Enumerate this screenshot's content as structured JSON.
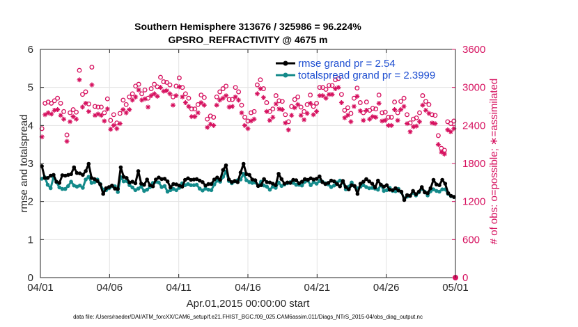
{
  "chart_data": {
    "type": "line",
    "title": "Southern Hemisphere 313676 / 325986 = 96.224%",
    "subtitle": "GPSRO_REFRACTIVITY @ 4675 m",
    "xlabel": "Apr.01,2015 00:00:00 start",
    "ylabel_left": "rmse and totalspread",
    "ylabel_right": "# of obs: o=possible; ∗=assimilated",
    "footnote": "data file: /Users/raeder/DAI/ATM_forcXX/CAM6_setup/f.e21.FHIST_BGC.f09_025.CAM6assim.011/Diags_NTrS_2015-04/obs_diag_output.nc",
    "x_ticks": [
      "04/01",
      "04/06",
      "04/11",
      "04/16",
      "04/21",
      "04/26",
      "05/01"
    ],
    "x_tick_days": [
      0,
      5,
      10,
      15,
      20,
      25,
      30
    ],
    "xlim_days": [
      0,
      30
    ],
    "ylim_left": [
      0,
      6
    ],
    "y_ticks_left": [
      0,
      1,
      2,
      3,
      4,
      5,
      6
    ],
    "ylim_right": [
      0,
      3600
    ],
    "y_ticks_right": [
      0,
      600,
      1200,
      1800,
      2400,
      3000,
      3600
    ],
    "grid": true,
    "legend_position": "top-right",
    "colors": {
      "rmse": "#000000",
      "totalspread": "#138a8a",
      "obs": "#d6115f",
      "legend_text": "#1f4fd1"
    },
    "series": [
      {
        "name": "rmse grand pr = 2.54",
        "axis": "left",
        "marker": "circle",
        "values": [
          2.93,
          2.62,
          2.62,
          2.68,
          2.7,
          2.52,
          2.49,
          2.69,
          2.68,
          2.7,
          2.72,
          2.9,
          2.75,
          2.74,
          2.7,
          2.8,
          2.99,
          2.62,
          2.59,
          2.54,
          2.45,
          2.2,
          2.35,
          2.38,
          2.42,
          2.34,
          2.33,
          2.9,
          2.65,
          2.62,
          2.5,
          2.52,
          2.48,
          2.8,
          2.47,
          2.44,
          2.58,
          2.43,
          2.4,
          2.58,
          2.63,
          2.59,
          2.6,
          2.53,
          2.37,
          2.46,
          2.45,
          2.42,
          2.39,
          2.57,
          2.61,
          2.57,
          2.58,
          2.59,
          2.55,
          2.51,
          2.42,
          2.46,
          2.46,
          2.58,
          2.63,
          2.57,
          2.83,
          2.95,
          2.58,
          2.51,
          2.54,
          2.51,
          2.76,
          2.99,
          2.72,
          2.7,
          2.58,
          2.56,
          2.41,
          2.43,
          2.59,
          2.51,
          2.5,
          2.47,
          2.43,
          2.73,
          2.59,
          2.47,
          2.5,
          2.49,
          2.57,
          2.56,
          2.48,
          2.52,
          2.59,
          2.57,
          2.61,
          2.58,
          2.6,
          2.66,
          2.51,
          2.46,
          2.49,
          2.55,
          2.53,
          2.46,
          2.4,
          2.54,
          2.38,
          2.32,
          2.43,
          2.41,
          2.2,
          2.47,
          2.52,
          2.59,
          2.53,
          2.47,
          2.37,
          2.55,
          2.44,
          2.39,
          2.43,
          2.31,
          2.3,
          2.35,
          2.29,
          2.26,
          2.04,
          2.17,
          2.15,
          2.28,
          2.19,
          2.26,
          2.38,
          2.24,
          2.22,
          2.35,
          2.57,
          2.45,
          2.43,
          2.57,
          2.47,
          2.22,
          2.15,
          2.12
        ]
      },
      {
        "name": "totalspread grand pr = 2.3999",
        "axis": "left",
        "marker": "circle",
        "values": [
          2.6,
          2.64,
          2.44,
          2.35,
          2.64,
          2.51,
          2.37,
          2.33,
          2.33,
          2.41,
          2.52,
          2.42,
          2.39,
          2.42,
          2.36,
          2.58,
          2.65,
          2.49,
          2.51,
          2.58,
          2.46,
          2.31,
          2.3,
          2.35,
          2.4,
          2.4,
          2.25,
          2.64,
          2.53,
          2.54,
          2.43,
          2.37,
          2.3,
          2.34,
          2.39,
          2.28,
          2.31,
          2.38,
          2.49,
          2.52,
          2.5,
          2.38,
          2.41,
          2.26,
          2.3,
          2.33,
          2.3,
          2.36,
          2.48,
          2.43,
          2.46,
          2.43,
          2.43,
          2.44,
          2.34,
          2.29,
          2.34,
          2.31,
          2.3,
          2.45,
          2.55,
          2.52,
          2.65,
          2.79,
          2.54,
          2.48,
          2.53,
          2.56,
          2.58,
          2.73,
          2.56,
          2.51,
          2.49,
          2.5,
          2.41,
          2.52,
          2.42,
          2.39,
          2.31,
          2.39,
          2.36,
          2.5,
          2.41,
          2.45,
          2.48,
          2.51,
          2.49,
          2.44,
          2.44,
          2.42,
          2.52,
          2.55,
          2.43,
          2.51,
          2.47,
          2.54,
          2.52,
          2.48,
          2.45,
          2.38,
          2.42,
          2.5,
          2.55,
          2.51,
          2.32,
          2.39,
          2.5,
          2.4,
          2.35,
          2.39,
          2.43,
          2.38,
          2.35,
          2.36,
          2.34,
          2.31,
          2.44,
          2.28,
          2.3,
          2.36,
          2.28,
          2.27,
          2.33,
          2.24,
          2.08,
          2.13,
          2.15,
          2.23,
          2.16,
          2.24,
          2.33,
          2.26,
          2.16,
          2.27,
          2.32,
          2.28,
          2.26,
          2.32,
          2.32,
          2.2,
          2.14,
          2.12
        ]
      },
      {
        "name": "possible",
        "axis": "right",
        "marker": "o",
        "values": [
          2350,
          2750,
          2770,
          2750,
          2790,
          2830,
          2750,
          2620,
          2250,
          2600,
          2650,
          2610,
          3270,
          2890,
          2930,
          2740,
          3320,
          2700,
          2690,
          2690,
          2600,
          2820,
          2480,
          2570,
          2440,
          2590,
          2800,
          2730,
          2850,
          2900,
          3020,
          3050,
          2900,
          2960,
          2830,
          2980,
          3050,
          3010,
          3160,
          3090,
          3080,
          3040,
          2850,
          3020,
          3150,
          3000,
          2900,
          2830,
          2660,
          2660,
          2730,
          2880,
          2840,
          2500,
          2550,
          2530,
          2850,
          2930,
          2980,
          3020,
          2810,
          2810,
          3000,
          2930,
          2720,
          2530,
          2470,
          2600,
          2620,
          3040,
          3120,
          2980,
          2760,
          2620,
          2660,
          2870,
          2790,
          2780,
          2570,
          2460,
          2700,
          2810,
          2850,
          2690,
          2620,
          2730,
          2880,
          2700,
          2750,
          3000,
          3000,
          2970,
          3030,
          3030,
          3120,
          3140,
          2890,
          2640,
          2680,
          2590,
          2830,
          2990,
          2760,
          2600,
          2770,
          2640,
          2670,
          2660,
          2880,
          2600,
          2610,
          2530,
          2530,
          2770,
          2600,
          2780,
          2830,
          2570,
          2440,
          2500,
          2520,
          2600,
          2870,
          2780,
          2730,
          2570,
          2560,
          2240,
          2040,
          2010,
          2460,
          2430,
          2470
        ]
      },
      {
        "name": "assimilated",
        "axis": "right",
        "marker": "*",
        "values": [
          2220,
          2570,
          2600,
          2580,
          2640,
          2650,
          2560,
          2500,
          2150,
          2460,
          2540,
          2500,
          3120,
          2690,
          2750,
          2620,
          3040,
          2560,
          2580,
          2560,
          2470,
          2660,
          2340,
          2400,
          2350,
          2430,
          2650,
          2600,
          2650,
          2800,
          2850,
          2960,
          2800,
          2820,
          2690,
          2870,
          2900,
          2860,
          3000,
          2940,
          2950,
          2900,
          2720,
          2870,
          3010,
          2850,
          2760,
          2700,
          2540,
          2540,
          2600,
          2760,
          2720,
          2370,
          2420,
          2400,
          2720,
          2800,
          2830,
          2870,
          2690,
          2700,
          2850,
          2800,
          2600,
          2400,
          2350,
          2470,
          2500,
          2900,
          2980,
          2840,
          2620,
          2480,
          2530,
          2740,
          2660,
          2650,
          2440,
          2330,
          2560,
          2680,
          2730,
          2560,
          2490,
          2590,
          2750,
          2570,
          2620,
          2870,
          2870,
          2830,
          2890,
          2890,
          2980,
          3000,
          2760,
          2520,
          2560,
          2460,
          2700,
          2860,
          2630,
          2480,
          2640,
          2500,
          2540,
          2530,
          2750,
          2470,
          2480,
          2400,
          2400,
          2650,
          2480,
          2650,
          2700,
          2430,
          2300,
          2380,
          2390,
          2460,
          2720,
          2640,
          2590,
          2440,
          2430,
          2100,
          1980,
          1950,
          2330,
          2300,
          2350
        ]
      }
    ]
  }
}
